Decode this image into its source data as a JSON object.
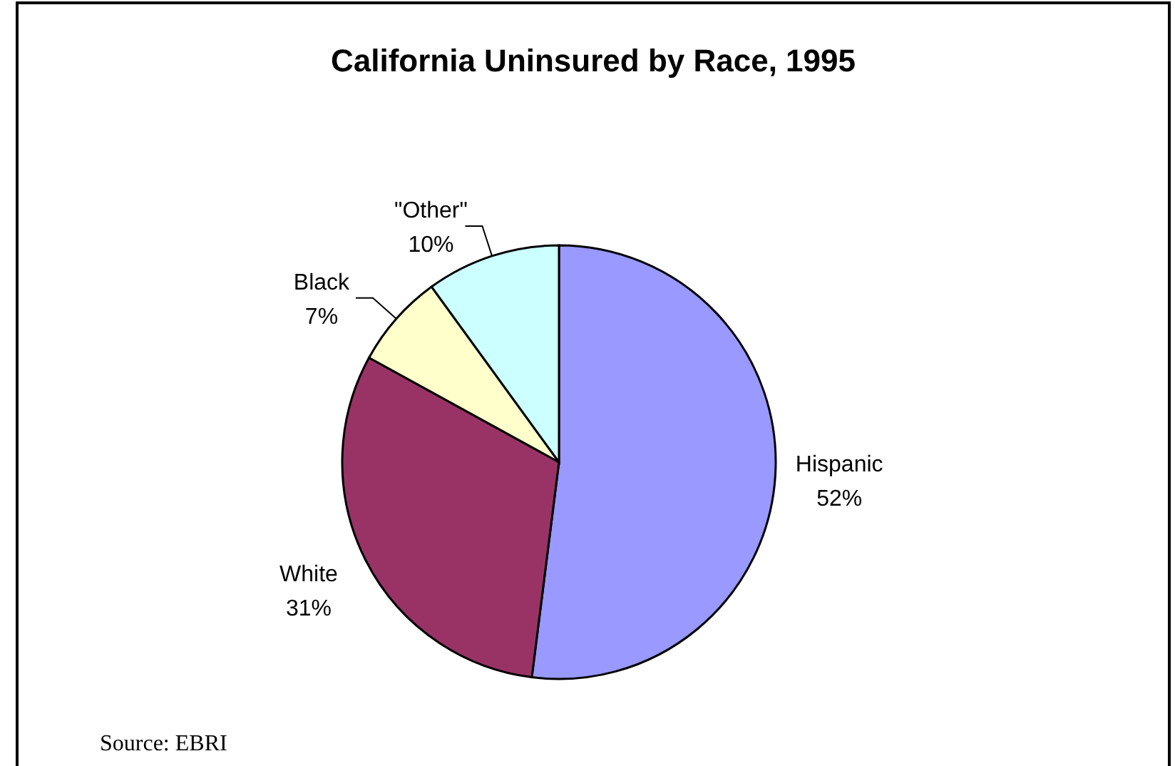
{
  "chart_data": {
    "type": "pie",
    "title": "California Uninsured by Race, 1995",
    "categories": [
      "Hispanic",
      "White",
      "Black",
      "\"Other\""
    ],
    "values": [
      52,
      31,
      7,
      10
    ],
    "colors": [
      "#9999ff",
      "#993366",
      "#ffffcc",
      "#ccffff"
    ],
    "value_labels": [
      "52%",
      "31%",
      "7%",
      "10%"
    ],
    "annotations": [
      "Source: EBRI"
    ]
  }
}
